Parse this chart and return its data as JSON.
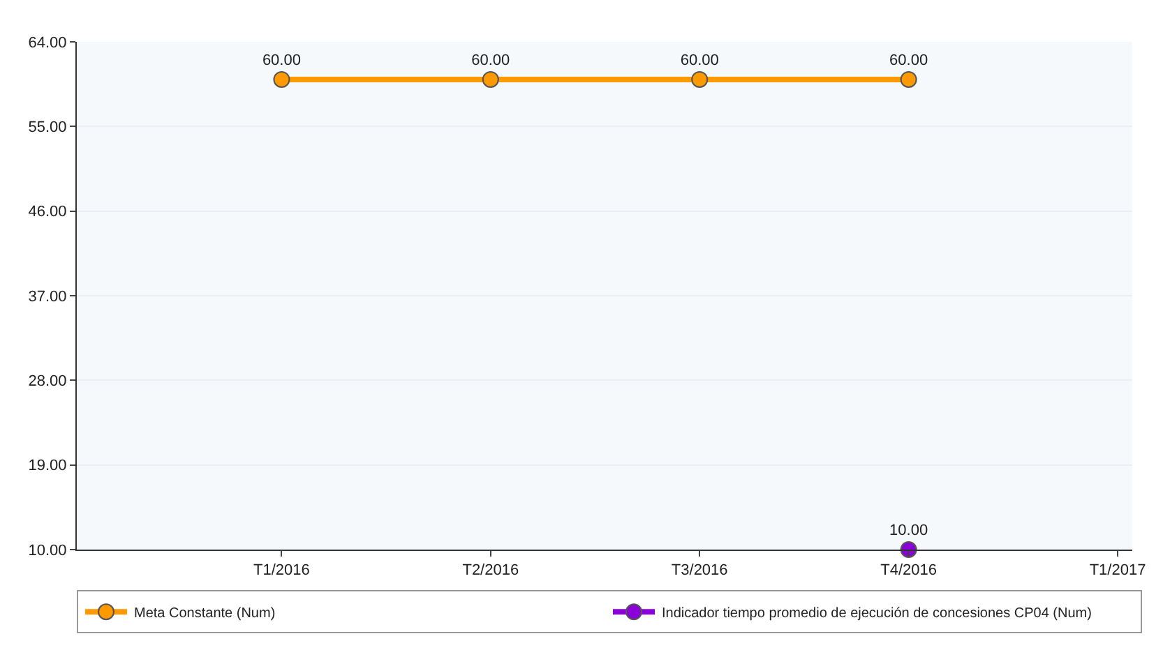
{
  "chart_data": {
    "type": "line",
    "categories": [
      "T1/2016",
      "T2/2016",
      "T3/2016",
      "T4/2016",
      "T1/2017"
    ],
    "series": [
      {
        "name": "Meta Constante (Num)",
        "color": "#ff9900",
        "values": [
          60,
          60,
          60,
          60,
          null
        ],
        "value_labels": [
          "60.00",
          "60.00",
          "60.00",
          "60.00",
          null
        ]
      },
      {
        "name": "Indicador tiempo promedio de ejecución de concesiones CP04 (Num)",
        "color": "#8b00d9",
        "values": [
          null,
          null,
          null,
          10,
          null
        ],
        "value_labels": [
          null,
          null,
          null,
          "10.00",
          null
        ]
      }
    ],
    "ylim": [
      10,
      64
    ],
    "yticks": [
      {
        "value": 10,
        "label": "10.00"
      },
      {
        "value": 19,
        "label": "19.00"
      },
      {
        "value": 28,
        "label": "28.00"
      },
      {
        "value": 37,
        "label": "37.00"
      },
      {
        "value": 46,
        "label": "46.00"
      },
      {
        "value": 55,
        "label": "55.00"
      },
      {
        "value": 64,
        "label": "64.00"
      }
    ],
    "grid": "y",
    "legend": "bottom",
    "marker": "circle",
    "line_style": "solid"
  }
}
